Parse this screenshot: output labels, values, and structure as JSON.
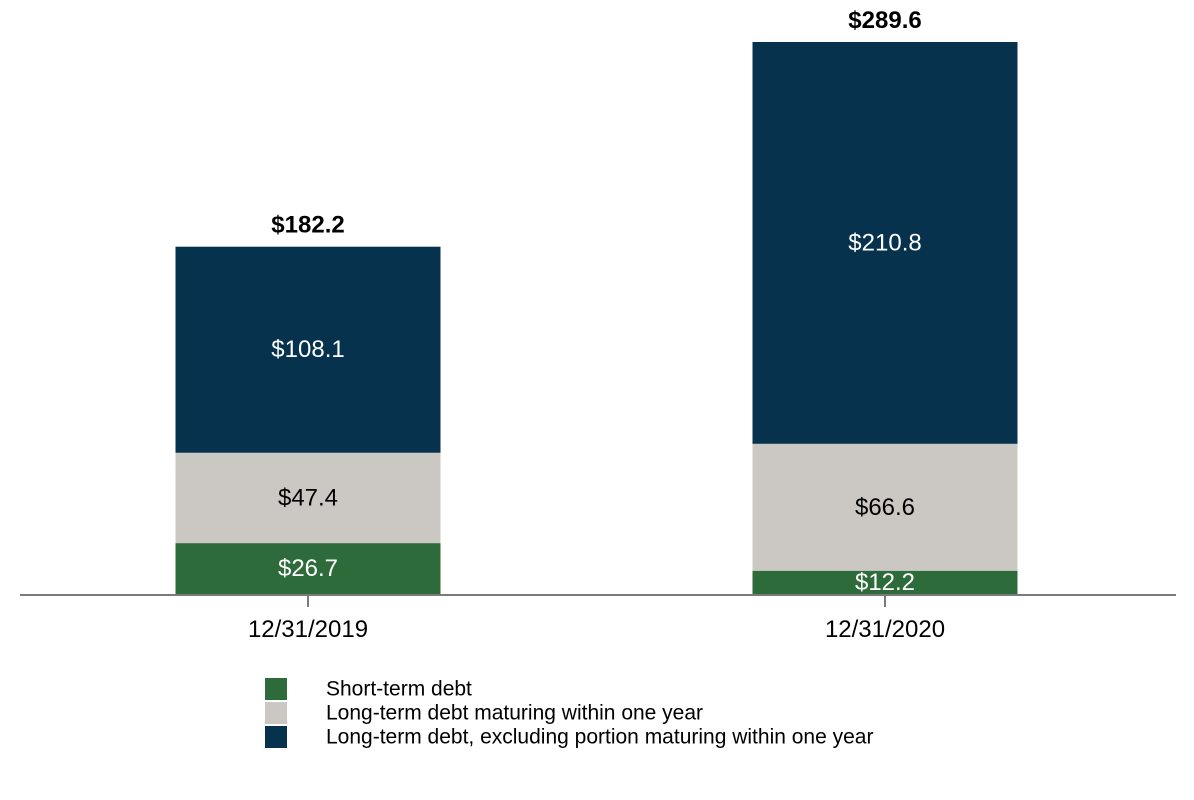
{
  "chart_data": {
    "type": "bar",
    "stacked": true,
    "categories": [
      "12/31/2019",
      "12/31/2020"
    ],
    "totals": [
      "$182.2",
      "$289.6"
    ],
    "series": [
      {
        "name": "Short-term debt",
        "values": [
          26.7,
          12.2
        ],
        "labels": [
          "$26.7",
          "$12.2"
        ],
        "color": "#2e6b3a",
        "label_color": "#ffffff"
      },
      {
        "name": "Long-term debt maturing within one year",
        "values": [
          47.4,
          66.6
        ],
        "labels": [
          "$47.4",
          "$66.6"
        ],
        "color": "#cbc8c3",
        "label_color": "#000000"
      },
      {
        "name": "Long-term debt, excluding portion maturing within one year",
        "values": [
          108.1,
          210.8
        ],
        "labels": [
          "$108.1",
          "$210.8"
        ],
        "color": "#06324e",
        "label_color": "#ffffff"
      }
    ],
    "title": "",
    "xlabel": "",
    "ylabel": "",
    "ylim": [
      0,
      289.6
    ],
    "grid": false,
    "legend": "bottom"
  }
}
